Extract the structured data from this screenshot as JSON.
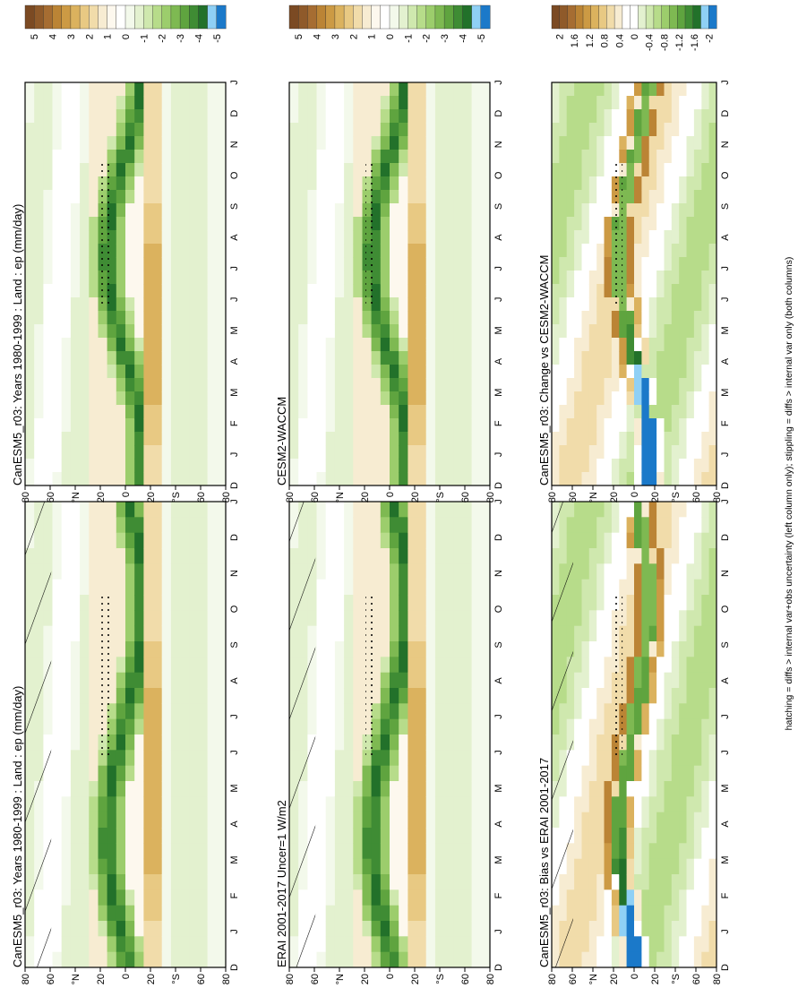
{
  "figure": {
    "footnote": "hatching = diffs > internal var+obs uncertainty (left column only); stippling = diffs > internal var only (both columns)"
  },
  "colors": {
    "abs_scale": [
      "#7b4a23",
      "#8f5a2a",
      "#a66d32",
      "#bb8435",
      "#cc9a44",
      "#dbb25e",
      "#e8c983",
      "#f1dcaa",
      "#f7ecd2",
      "#fdf8ee",
      "#ffffff",
      "#f3f9eb",
      "#e3f1cf",
      "#cfe8ae",
      "#b7dc8a",
      "#9ccd6c",
      "#7eb952",
      "#5fa43f",
      "#3f8c34",
      "#22712a",
      "#8fd0f5",
      "#1b79c9"
    ],
    "diff_scale": [
      "#7b4a23",
      "#8f5a2a",
      "#a66d32",
      "#bb8435",
      "#cc9a44",
      "#dbb25e",
      "#e8c983",
      "#f1dcaa",
      "#f7ecd2",
      "#ffffff",
      "#ffffff",
      "#e3f1cf",
      "#cfe8ae",
      "#b7dc8a",
      "#9ccd6c",
      "#7eb952",
      "#5fa43f",
      "#3f8c34",
      "#22712a",
      "#8fd0f5",
      "#1b79c9"
    ]
  },
  "chart_data": [
    {
      "type": "heatmap",
      "title": "CanESM5_r03: Years 1980-1999 : Land : ep (mm/day)",
      "x_ticks": [
        "D",
        "J",
        "F",
        "M",
        "A",
        "M",
        "J",
        "J",
        "A",
        "S",
        "O",
        "N",
        "D",
        "J"
      ],
      "y_ticks": [
        "80",
        "60",
        "40",
        "20",
        "0",
        "20",
        "40",
        "60",
        "80"
      ],
      "y_tick_labels": [
        "80",
        "60",
        "°N",
        "20",
        "0",
        "20",
        "°S",
        "60",
        "80"
      ],
      "colorbar_ticks": [
        "5",
        "4",
        "3",
        "2",
        "1",
        "0",
        "-1",
        "-2",
        "-3",
        "-4",
        "-5"
      ],
      "overlay": "hatching and stippling"
    },
    {
      "type": "heatmap",
      "title": "CanESM5_r03: Years 1980-1999 : Land : ep (mm/day)",
      "x_ticks": [
        "D",
        "J",
        "F",
        "M",
        "A",
        "M",
        "J",
        "J",
        "A",
        "S",
        "O",
        "N",
        "D",
        "J"
      ],
      "y_tick_labels": [
        "80",
        "60",
        "°N",
        "20",
        "0",
        "20",
        "°S",
        "60",
        "80"
      ],
      "colorbar_ticks": [
        "5",
        "4",
        "3",
        "2",
        "1",
        "0",
        "-1",
        "-2",
        "-3",
        "-4",
        "-5"
      ],
      "overlay": "stippling"
    },
    {
      "type": "heatmap",
      "title": "ERAI 2001-2017 Uncer=1 W/m2",
      "x_ticks": [
        "D",
        "J",
        "F",
        "M",
        "A",
        "M",
        "J",
        "J",
        "A",
        "S",
        "O",
        "N",
        "D",
        "J"
      ],
      "y_tick_labels": [
        "80",
        "60",
        "°N",
        "20",
        "0",
        "20",
        "°S",
        "60",
        "80"
      ],
      "colorbar_ticks": [
        "5",
        "4",
        "3",
        "2",
        "1",
        "0",
        "-1",
        "-2",
        "-3",
        "-4",
        "-5"
      ],
      "overlay": "hatching and stippling"
    },
    {
      "type": "heatmap",
      "title": "CESM2-WACCM",
      "x_ticks": [
        "D",
        "J",
        "F",
        "M",
        "A",
        "M",
        "J",
        "J",
        "A",
        "S",
        "O",
        "N",
        "D",
        "J"
      ],
      "y_tick_labels": [
        "80",
        "60",
        "°N",
        "20",
        "0",
        "20",
        "°S",
        "60",
        "80"
      ],
      "colorbar_ticks": [
        "5",
        "4",
        "3",
        "2",
        "1",
        "0",
        "-1",
        "-2",
        "-3",
        "-4",
        "-5"
      ],
      "overlay": "stippling"
    },
    {
      "type": "heatmap",
      "title": "CanESM5_r03: Bias vs ERAI 2001-2017",
      "x_ticks": [
        "D",
        "J",
        "F",
        "M",
        "A",
        "M",
        "J",
        "J",
        "A",
        "S",
        "O",
        "N",
        "D",
        "J"
      ],
      "y_tick_labels": [
        "80",
        "60",
        "°N",
        "20",
        "0",
        "20",
        "°S",
        "60",
        "80"
      ],
      "colorbar_ticks": [
        "2",
        "1.6",
        "1.2",
        "0.8",
        "0.4",
        "0",
        "-0.4",
        "-0.8",
        "-1.2",
        "-1.6",
        "-2"
      ],
      "overlay": "hatching and stippling"
    },
    {
      "type": "heatmap",
      "title": "CanESM5_r03: Change vs CESM2-WACCM",
      "x_ticks": [
        "D",
        "J",
        "F",
        "M",
        "A",
        "M",
        "J",
        "J",
        "A",
        "S",
        "O",
        "N",
        "D",
        "J"
      ],
      "y_tick_labels": [
        "80",
        "60",
        "°N",
        "20",
        "0",
        "20",
        "°S",
        "60",
        "80"
      ],
      "colorbar_ticks": [
        "2",
        "1.6",
        "1.2",
        "0.8",
        "0.4",
        "0",
        "-0.4",
        "-0.8",
        "-1.2",
        "-1.6",
        "-2"
      ],
      "overlay": "stippling"
    }
  ]
}
